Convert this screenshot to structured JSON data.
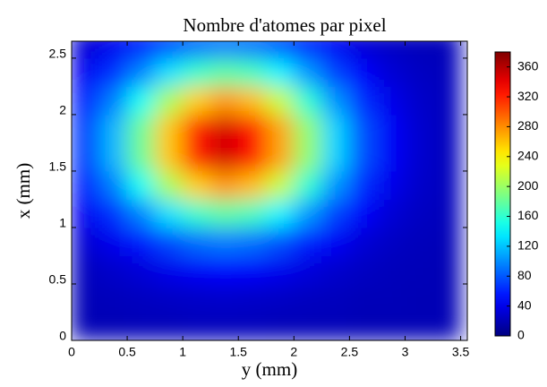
{
  "chart_data": {
    "type": "heatmap",
    "title": "Nombre d'atomes par pixel",
    "xlabel": "y (mm)",
    "ylabel": "x (mm)",
    "colormap": "jet",
    "x": [
      0.125,
      0.375,
      0.625,
      0.875,
      1.125,
      1.375,
      1.625,
      1.875,
      2.125,
      2.375,
      2.625,
      2.875,
      3.125,
      3.375
    ],
    "y": [
      0.125,
      0.375,
      0.625,
      0.875,
      1.125,
      1.375,
      1.625,
      1.875,
      2.125,
      2.375,
      2.625
    ],
    "z": [
      [
        20,
        20,
        21,
        21,
        22,
        22,
        22,
        21,
        21,
        21,
        20,
        20,
        20,
        20
      ],
      [
        21,
        22,
        24,
        26,
        27,
        28,
        27,
        26,
        24,
        23,
        21,
        21,
        20,
        20
      ],
      [
        24,
        28,
        33,
        40,
        45,
        47,
        46,
        41,
        35,
        29,
        25,
        22,
        21,
        20
      ],
      [
        31,
        41,
        56,
        73,
        87,
        93,
        89,
        76,
        59,
        44,
        32,
        26,
        22,
        21
      ],
      [
        43,
        65,
        96,
        132,
        162,
        176,
        167,
        139,
        104,
        71,
        46,
        32,
        25,
        22
      ],
      [
        57,
        94,
        146,
        205,
        255,
        276,
        262,
        217,
        158,
        103,
        63,
        40,
        28,
        23
      ],
      [
        68,
        115,
        182,
        258,
        321,
        349,
        330,
        272,
        197,
        127,
        76,
        45,
        30,
        23
      ],
      [
        68,
        115,
        182,
        258,
        321,
        349,
        330,
        272,
        197,
        127,
        76,
        45,
        30,
        23
      ],
      [
        57,
        94,
        146,
        205,
        255,
        276,
        262,
        217,
        158,
        103,
        63,
        40,
        28,
        23
      ],
      [
        43,
        65,
        96,
        132,
        162,
        176,
        167,
        139,
        104,
        71,
        46,
        32,
        25,
        22
      ],
      [
        31,
        41,
        56,
        73,
        87,
        93,
        89,
        76,
        59,
        44,
        32,
        26,
        22,
        21
      ]
    ],
    "xlim": [
      0,
      3.56
    ],
    "ylim": [
      0,
      2.65
    ],
    "xticks": [
      0,
      0.5,
      1,
      1.5,
      2,
      2.5,
      3,
      3.5
    ],
    "yticks": [
      0,
      0.5,
      1,
      1.5,
      2,
      2.5
    ],
    "zlim": [
      0,
      380
    ],
    "zticks": [
      0,
      40,
      80,
      120,
      160,
      200,
      240,
      280,
      320,
      360
    ]
  }
}
